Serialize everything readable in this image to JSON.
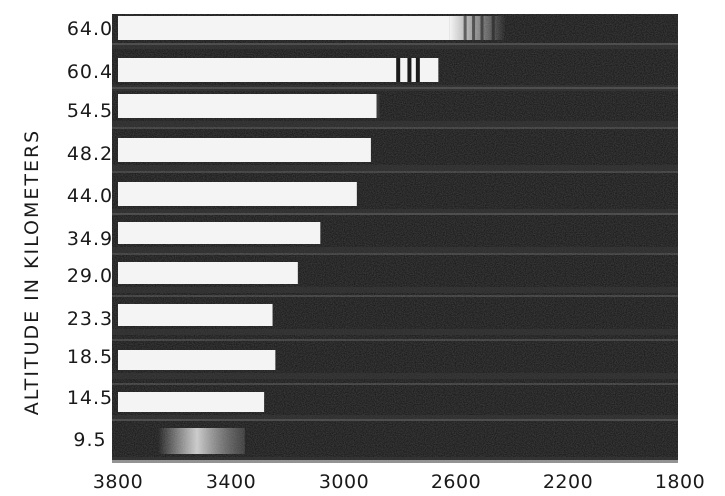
{
  "figure": {
    "ylabel": "ALTITUDE IN KILOMETERS",
    "altitudes": [
      "64.0",
      "60.4",
      "54.5",
      "48.2",
      "44.0",
      "34.9",
      "29.0",
      "23.3",
      "18.5",
      "14.5",
      "9.5"
    ],
    "wavelength_ticks": [
      "3800",
      "3400",
      "3000",
      "2600",
      "2200",
      "1800"
    ],
    "wavelength_range": [
      3800,
      1800
    ],
    "spectra": [
      {
        "altitude": "64.0",
        "cutoff": 2420
      },
      {
        "altitude": "60.4",
        "cutoff": 2660
      },
      {
        "altitude": "54.5",
        "cutoff": 2870
      },
      {
        "altitude": "48.2",
        "cutoff": 2900
      },
      {
        "altitude": "44.0",
        "cutoff": 2950
      },
      {
        "altitude": "34.9",
        "cutoff": 3080
      },
      {
        "altitude": "29.0",
        "cutoff": 3160
      },
      {
        "altitude": "23.3",
        "cutoff": 3250
      },
      {
        "altitude": "18.5",
        "cutoff": 3240
      },
      {
        "altitude": "14.5",
        "cutoff": 3280
      },
      {
        "altitude": "9.5",
        "cutoff": 3420
      }
    ],
    "colors": {
      "film": "#111111",
      "exposed": "#f4f4f4",
      "ink": "#1a1a1a"
    }
  }
}
